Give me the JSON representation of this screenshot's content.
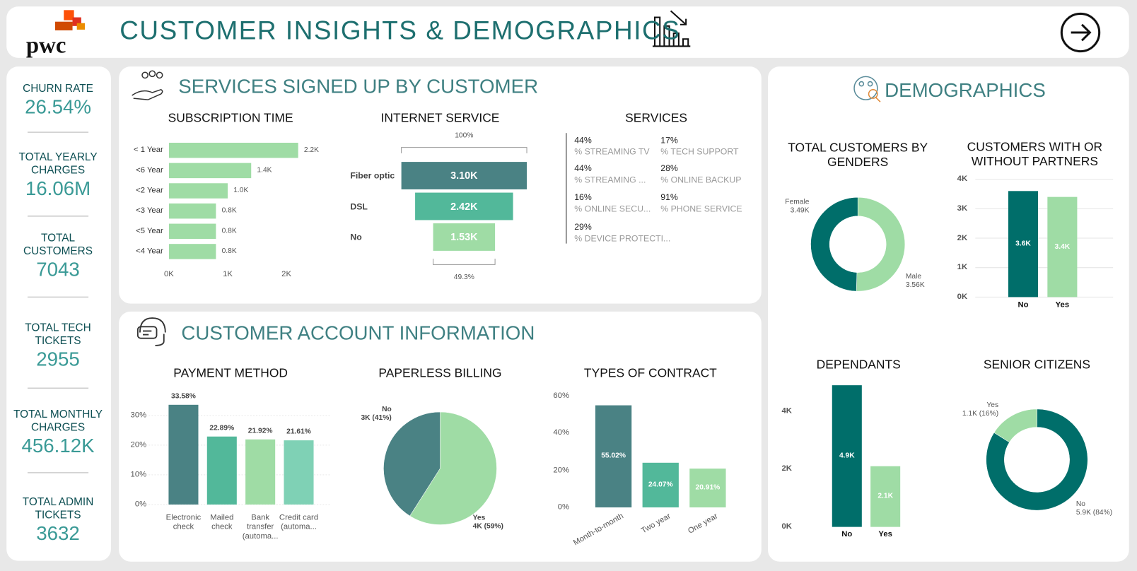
{
  "header": {
    "logo": "pwc",
    "title": "CUSTOMER INSIGHTS & DEMOGRAPHICS"
  },
  "kpis": [
    {
      "label": "CHURN RATE",
      "value": "26.54%"
    },
    {
      "label": "TOTAL YEARLY CHARGES",
      "value": "16.06M"
    },
    {
      "label": "TOTAL CUSTOMERS",
      "value": "7043"
    },
    {
      "label": "TOTAL TECH TICKETS",
      "value": "2955"
    },
    {
      "label": "TOTAL MONTHLY CHARGES",
      "value": "456.12K"
    },
    {
      "label": "TOTAL ADMIN TICKETS",
      "value": "3632"
    }
  ],
  "sections": [
    "SERVICES SIGNED UP BY CUSTOMER",
    "CUSTOMER ACCOUNT INFORMATION",
    "DEMOGRAPHICS"
  ],
  "services_card": {
    "title": "SERVICES",
    "items": [
      {
        "value": "44%",
        "label": "% STREAMING TV"
      },
      {
        "value": "44%",
        "label": "% STREAMING ..."
      },
      {
        "value": "16%",
        "label": "% ONLINE SECU..."
      },
      {
        "value": "29%",
        "label": "% DEVICE PROTECTI..."
      },
      {
        "value": "17%",
        "label": "% TECH SUPPORT"
      },
      {
        "value": "28%",
        "label": "% ONLINE BACKUP"
      },
      {
        "value": "91%",
        "label": "% PHONE SERVICE"
      }
    ]
  },
  "chart_data": [
    {
      "type": "hbar",
      "title": "SUBSCRIPTION TIME",
      "categories": [
        "< 1 Year",
        "<6 Year",
        "<2 Year",
        "<3 Year",
        "<5 Year",
        "<4 Year"
      ],
      "values": [
        2200,
        1400,
        1000,
        800,
        800,
        800
      ],
      "value_labels": [
        "2.2K",
        "1.4K",
        "1.0K",
        "0.8K",
        "0.8K",
        "0.8K"
      ],
      "color": "#9fdca5",
      "xlim": [
        0,
        2500
      ],
      "xticks": [
        {
          "value": 0,
          "label": "0K"
        },
        {
          "value": 1000,
          "label": "1K"
        },
        {
          "value": 2000,
          "label": "2K"
        }
      ]
    },
    {
      "type": "funnel",
      "title": "INTERNET SERVICE",
      "categories": [
        "Fiber optic",
        "DSL",
        "No"
      ],
      "values": [
        3100,
        2420,
        1530
      ],
      "value_labels": [
        "3.10K",
        "2.42K",
        "1.53K"
      ],
      "colors": [
        "#4a8284",
        "#52b89a",
        "#9fdca5"
      ],
      "top_label": "100%",
      "bottom_label": "49.3%"
    },
    {
      "type": "bar",
      "title": "PAYMENT METHOD",
      "categories": [
        "Electronic check",
        "Mailed check",
        "Bank transfer (automa...",
        "Credit card (automa..."
      ],
      "values": [
        33.58,
        22.89,
        21.92,
        21.61
      ],
      "value_labels": [
        "33.58%",
        "22.89%",
        "21.92%",
        "21.61%"
      ],
      "colors": [
        "#4a8284",
        "#52b89a",
        "#9fdca5",
        "#7fd1b5"
      ],
      "ylim": [
        0,
        37
      ],
      "yticks": [
        {
          "value": 0,
          "label": "0%"
        },
        {
          "value": 10,
          "label": "10%"
        },
        {
          "value": 20,
          "label": "20%"
        },
        {
          "value": 30,
          "label": "30%"
        }
      ],
      "grid": true
    },
    {
      "type": "pie",
      "title": "PAPERLESS BILLING",
      "categories": [
        "No",
        "Yes"
      ],
      "values": [
        41,
        59
      ],
      "value_labels": [
        "3K (41%)",
        "4K (59%)"
      ],
      "colors": [
        "#4a8284",
        "#9fdca5"
      ]
    },
    {
      "type": "bar",
      "title": "TYPES OF CONTRACT",
      "categories": [
        "Month-to-month",
        "Two year",
        "One year"
      ],
      "values": [
        55.02,
        24.07,
        20.91
      ],
      "value_labels": [
        "55.02%",
        "24.07%",
        "20.91%"
      ],
      "colors": [
        "#4a8284",
        "#52b89a",
        "#9fdca5"
      ],
      "ylim": [
        0,
        60
      ],
      "yticks": [
        {
          "value": 0,
          "label": "0%"
        },
        {
          "value": 20,
          "label": "20%"
        },
        {
          "value": 40,
          "label": "40%"
        },
        {
          "value": 60,
          "label": "60%"
        }
      ],
      "grid": false
    },
    {
      "type": "donut",
      "title": "TOTAL CUSTOMERS BY GENDERS",
      "categories": [
        "Female",
        "Male"
      ],
      "values": [
        3490,
        3560
      ],
      "value_labels": [
        "3.49K",
        "3.56K"
      ],
      "colors": [
        "#006e6a",
        "#9fdca5"
      ]
    },
    {
      "type": "bar",
      "title": "CUSTOMERS WITH OR WITHOUT PARTNERS",
      "categories": [
        "No",
        "Yes"
      ],
      "values": [
        3600,
        3400
      ],
      "value_labels": [
        "3.6K",
        "3.4K"
      ],
      "colors": [
        "#006e6a",
        "#9fdca5"
      ],
      "ylim": [
        0,
        4000
      ],
      "yticks": [
        {
          "value": 0,
          "label": "0K"
        },
        {
          "value": 1000,
          "label": "1K"
        },
        {
          "value": 2000,
          "label": "2K"
        },
        {
          "value": 3000,
          "label": "3K"
        },
        {
          "value": 4000,
          "label": "4K"
        }
      ],
      "grid": true
    },
    {
      "type": "bar",
      "title": "DEPENDANTS",
      "categories": [
        "No",
        "Yes"
      ],
      "values": [
        4900,
        2100
      ],
      "value_labels": [
        "4.9K",
        "2.1K"
      ],
      "colors": [
        "#006e6a",
        "#9fdca5"
      ],
      "ylim": [
        0,
        5000
      ],
      "yticks": [
        {
          "value": 0,
          "label": "0K"
        },
        {
          "value": 2000,
          "label": "2K"
        },
        {
          "value": 4000,
          "label": "4K"
        }
      ],
      "grid": false
    },
    {
      "type": "donut",
      "title": "SENIOR CITIZENS",
      "categories": [
        "Yes",
        "No"
      ],
      "values": [
        16,
        84
      ],
      "value_labels": [
        "1.1K (16%)",
        "5.9K (84%)"
      ],
      "colors": [
        "#9fdca5",
        "#006e6a"
      ]
    }
  ]
}
